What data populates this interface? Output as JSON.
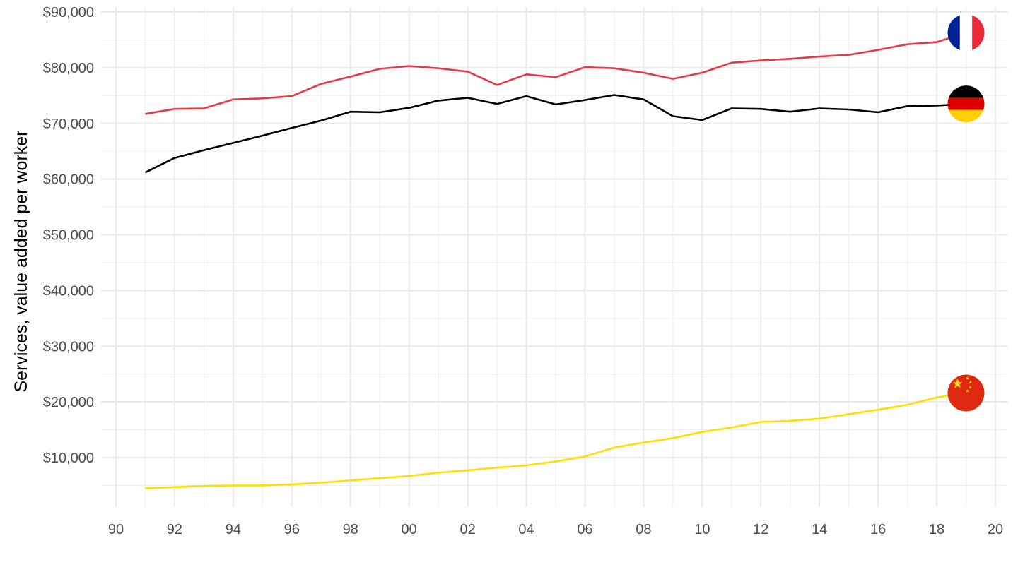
{
  "chart_data": {
    "type": "line",
    "title": "",
    "xlabel": "",
    "ylabel": "Services, value added per worker",
    "xlim": [
      1990,
      2020
    ],
    "ylim": [
      2000,
      90000
    ],
    "grid": true,
    "legend": "flag icons at line ends (right)",
    "x_ticks": [
      {
        "value": 1990,
        "label": "90"
      },
      {
        "value": 1992,
        "label": "92"
      },
      {
        "value": 1994,
        "label": "94"
      },
      {
        "value": 1996,
        "label": "96"
      },
      {
        "value": 1998,
        "label": "98"
      },
      {
        "value": 2000,
        "label": "00"
      },
      {
        "value": 2002,
        "label": "02"
      },
      {
        "value": 2004,
        "label": "04"
      },
      {
        "value": 2006,
        "label": "06"
      },
      {
        "value": 2008,
        "label": "08"
      },
      {
        "value": 2010,
        "label": "10"
      },
      {
        "value": 2012,
        "label": "12"
      },
      {
        "value": 2014,
        "label": "14"
      },
      {
        "value": 2016,
        "label": "16"
      },
      {
        "value": 2018,
        "label": "18"
      },
      {
        "value": 2020,
        "label": "20"
      }
    ],
    "y_ticks": [
      {
        "value": 10000,
        "label": "$10,000"
      },
      {
        "value": 20000,
        "label": "$20,000"
      },
      {
        "value": 30000,
        "label": "$30,000"
      },
      {
        "value": 40000,
        "label": "$40,000"
      },
      {
        "value": 50000,
        "label": "$50,000"
      },
      {
        "value": 60000,
        "label": "$60,000"
      },
      {
        "value": 70000,
        "label": "$70,000"
      },
      {
        "value": 80000,
        "label": "$80,000"
      },
      {
        "value": 90000,
        "label": "$90,000"
      }
    ],
    "x": [
      1991,
      1992,
      1993,
      1994,
      1995,
      1996,
      1997,
      1998,
      1999,
      2000,
      2001,
      2002,
      2003,
      2004,
      2005,
      2006,
      2007,
      2008,
      2009,
      2010,
      2011,
      2012,
      2013,
      2014,
      2015,
      2016,
      2017,
      2018,
      2019
    ],
    "series": [
      {
        "country": "France",
        "flag": "france-flag",
        "color": "#e63946",
        "values": [
          71700,
          72600,
          72700,
          74300,
          74500,
          74900,
          77100,
          78400,
          79800,
          80300,
          79900,
          79300,
          76900,
          78800,
          78300,
          80100,
          79900,
          79100,
          78000,
          79100,
          80900,
          81300,
          81600,
          82000,
          82300,
          83200,
          84200,
          84600,
          86300
        ]
      },
      {
        "country": "Germany",
        "flag": "germany-flag",
        "color": "#000000",
        "values": [
          61200,
          63800,
          65200,
          66500,
          67800,
          69200,
          70500,
          72100,
          72000,
          72800,
          74100,
          74600,
          73500,
          74900,
          73400,
          74200,
          75100,
          74300,
          71300,
          70600,
          72700,
          72600,
          72100,
          72700,
          72500,
          72000,
          73100,
          73200,
          73500
        ]
      },
      {
        "country": "China",
        "flag": "china-flag",
        "color": "#ffde00",
        "values": [
          4500,
          4700,
          4900,
          5000,
          5000,
          5200,
          5500,
          5900,
          6300,
          6700,
          7300,
          7700,
          8200,
          8600,
          9300,
          10200,
          11800,
          12700,
          13500,
          14600,
          15400,
          16400,
          16600,
          17000,
          17800,
          18600,
          19500,
          20800,
          21600
        ]
      }
    ]
  }
}
